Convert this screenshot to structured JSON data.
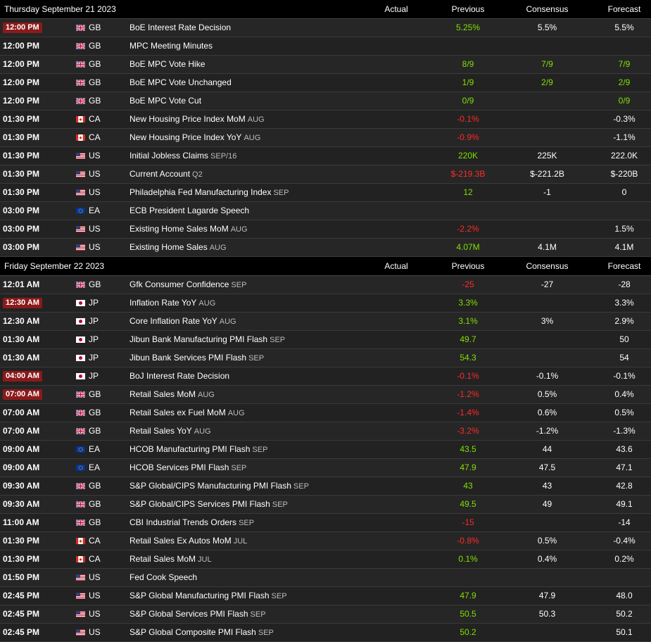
{
  "columns": {
    "actual": "Actual",
    "previous": "Previous",
    "consensus": "Consensus",
    "forecast": "Forecast"
  },
  "colors": {
    "positive": "#7fe000",
    "negative": "#ff2a2a",
    "badge": "#8b1a1a"
  },
  "days": [
    {
      "date": "Thursday September 21 2023",
      "events": [
        {
          "time": "12:00 PM",
          "badge": true,
          "country": "GB",
          "event": "BoE Interest Rate Decision",
          "ref": "",
          "actual": "",
          "previous": "5.25%",
          "previous_color": "pos",
          "consensus": "5.5%",
          "consensus_color": "neu",
          "forecast": "5.5%",
          "forecast_color": "neu"
        },
        {
          "time": "12:00 PM",
          "badge": false,
          "country": "GB",
          "event": "MPC Meeting Minutes",
          "ref": "",
          "actual": "",
          "previous": "",
          "previous_color": "neu",
          "consensus": "",
          "consensus_color": "neu",
          "forecast": "",
          "forecast_color": "neu"
        },
        {
          "time": "12:00 PM",
          "badge": false,
          "country": "GB",
          "event": "BoE MPC Vote Hike",
          "ref": "",
          "actual": "",
          "previous": "8/9",
          "previous_color": "pos",
          "consensus": "7/9",
          "consensus_color": "pos",
          "forecast": "7/9",
          "forecast_color": "pos"
        },
        {
          "time": "12:00 PM",
          "badge": false,
          "country": "GB",
          "event": "BoE MPC Vote Unchanged",
          "ref": "",
          "actual": "",
          "previous": "1/9",
          "previous_color": "pos",
          "consensus": "2/9",
          "consensus_color": "pos",
          "forecast": "2/9",
          "forecast_color": "pos"
        },
        {
          "time": "12:00 PM",
          "badge": false,
          "country": "GB",
          "event": "BoE MPC Vote Cut",
          "ref": "",
          "actual": "",
          "previous": "0/9",
          "previous_color": "pos",
          "consensus": "",
          "consensus_color": "neu",
          "forecast": "0/9",
          "forecast_color": "pos"
        },
        {
          "time": "01:30 PM",
          "badge": false,
          "country": "CA",
          "event": "New Housing Price Index MoM",
          "ref": "AUG",
          "actual": "",
          "previous": "-0.1%",
          "previous_color": "neg",
          "consensus": "",
          "consensus_color": "neu",
          "forecast": "-0.3%",
          "forecast_color": "neu"
        },
        {
          "time": "01:30 PM",
          "badge": false,
          "country": "CA",
          "event": "New Housing Price Index YoY",
          "ref": "AUG",
          "actual": "",
          "previous": "-0.9%",
          "previous_color": "neg",
          "consensus": "",
          "consensus_color": "neu",
          "forecast": "-1.1%",
          "forecast_color": "neu"
        },
        {
          "time": "01:30 PM",
          "badge": false,
          "country": "US",
          "event": "Initial Jobless Claims",
          "ref": "SEP/16",
          "actual": "",
          "previous": "220K",
          "previous_color": "pos",
          "consensus": "225K",
          "consensus_color": "neu",
          "forecast": "222.0K",
          "forecast_color": "neu"
        },
        {
          "time": "01:30 PM",
          "badge": false,
          "country": "US",
          "event": "Current Account",
          "ref": "Q2",
          "actual": "",
          "previous": "$-219.3B",
          "previous_color": "neg",
          "consensus": "$-221.2B",
          "consensus_color": "neu",
          "forecast": "$-220B",
          "forecast_color": "neu"
        },
        {
          "time": "01:30 PM",
          "badge": false,
          "country": "US",
          "event": "Philadelphia Fed Manufacturing Index",
          "ref": "SEP",
          "actual": "",
          "previous": "12",
          "previous_color": "pos",
          "consensus": "-1",
          "consensus_color": "neu",
          "forecast": "0",
          "forecast_color": "neu"
        },
        {
          "time": "03:00 PM",
          "badge": false,
          "country": "EA",
          "event": "ECB President Lagarde Speech",
          "ref": "",
          "actual": "",
          "previous": "",
          "previous_color": "neu",
          "consensus": "",
          "consensus_color": "neu",
          "forecast": "",
          "forecast_color": "neu"
        },
        {
          "time": "03:00 PM",
          "badge": false,
          "country": "US",
          "event": "Existing Home Sales MoM",
          "ref": "AUG",
          "actual": "",
          "previous": "-2.2%",
          "previous_color": "neg",
          "consensus": "",
          "consensus_color": "neu",
          "forecast": "1.5%",
          "forecast_color": "neu"
        },
        {
          "time": "03:00 PM",
          "badge": false,
          "country": "US",
          "event": "Existing Home Sales",
          "ref": "AUG",
          "actual": "",
          "previous": "4.07M",
          "previous_color": "pos",
          "consensus": "4.1M",
          "consensus_color": "neu",
          "forecast": "4.1M",
          "forecast_color": "neu"
        }
      ]
    },
    {
      "date": "Friday September 22 2023",
      "events": [
        {
          "time": "12:01 AM",
          "badge": false,
          "country": "GB",
          "event": "Gfk Consumer Confidence",
          "ref": "SEP",
          "actual": "",
          "previous": "-25",
          "previous_color": "neg",
          "consensus": "-27",
          "consensus_color": "neu",
          "forecast": "-28",
          "forecast_color": "neu"
        },
        {
          "time": "12:30 AM",
          "badge": true,
          "country": "JP",
          "event": "Inflation Rate YoY",
          "ref": "AUG",
          "actual": "",
          "previous": "3.3%",
          "previous_color": "pos",
          "consensus": "",
          "consensus_color": "neu",
          "forecast": "3.3%",
          "forecast_color": "neu"
        },
        {
          "time": "12:30 AM",
          "badge": false,
          "country": "JP",
          "event": "Core Inflation Rate YoY",
          "ref": "AUG",
          "actual": "",
          "previous": "3.1%",
          "previous_color": "pos",
          "consensus": "3%",
          "consensus_color": "neu",
          "forecast": "2.9%",
          "forecast_color": "neu"
        },
        {
          "time": "01:30 AM",
          "badge": false,
          "country": "JP",
          "event": "Jibun Bank Manufacturing PMI Flash",
          "ref": "SEP",
          "actual": "",
          "previous": "49.7",
          "previous_color": "pos",
          "consensus": "",
          "consensus_color": "neu",
          "forecast": "50",
          "forecast_color": "neu"
        },
        {
          "time": "01:30 AM",
          "badge": false,
          "country": "JP",
          "event": "Jibun Bank Services PMI Flash",
          "ref": "SEP",
          "actual": "",
          "previous": "54.3",
          "previous_color": "pos",
          "consensus": "",
          "consensus_color": "neu",
          "forecast": "54",
          "forecast_color": "neu"
        },
        {
          "time": "04:00 AM",
          "badge": true,
          "country": "JP",
          "event": "BoJ Interest Rate Decision",
          "ref": "",
          "actual": "",
          "previous": "-0.1%",
          "previous_color": "neg",
          "consensus": "-0.1%",
          "consensus_color": "neu",
          "forecast": "-0.1%",
          "forecast_color": "neu"
        },
        {
          "time": "07:00 AM",
          "badge": true,
          "country": "GB",
          "event": "Retail Sales MoM",
          "ref": "AUG",
          "actual": "",
          "previous": "-1.2%",
          "previous_color": "neg",
          "consensus": "0.5%",
          "consensus_color": "neu",
          "forecast": "0.4%",
          "forecast_color": "neu"
        },
        {
          "time": "07:00 AM",
          "badge": false,
          "country": "GB",
          "event": "Retail Sales ex Fuel MoM",
          "ref": "AUG",
          "actual": "",
          "previous": "-1.4%",
          "previous_color": "neg",
          "consensus": "0.6%",
          "consensus_color": "neu",
          "forecast": "0.5%",
          "forecast_color": "neu"
        },
        {
          "time": "07:00 AM",
          "badge": false,
          "country": "GB",
          "event": "Retail Sales YoY",
          "ref": "AUG",
          "actual": "",
          "previous": "-3.2%",
          "previous_color": "neg",
          "consensus": "-1.2%",
          "consensus_color": "neu",
          "forecast": "-1.3%",
          "forecast_color": "neu"
        },
        {
          "time": "09:00 AM",
          "badge": false,
          "country": "EA",
          "event": "HCOB Manufacturing PMI Flash",
          "ref": "SEP",
          "actual": "",
          "previous": "43.5",
          "previous_color": "pos",
          "consensus": "44",
          "consensus_color": "neu",
          "forecast": "43.6",
          "forecast_color": "neu"
        },
        {
          "time": "09:00 AM",
          "badge": false,
          "country": "EA",
          "event": "HCOB Services PMI Flash",
          "ref": "SEP",
          "actual": "",
          "previous": "47.9",
          "previous_color": "pos",
          "consensus": "47.5",
          "consensus_color": "neu",
          "forecast": "47.1",
          "forecast_color": "neu"
        },
        {
          "time": "09:30 AM",
          "badge": false,
          "country": "GB",
          "event": "S&P Global/CIPS Manufacturing PMI Flash",
          "ref": "SEP",
          "actual": "",
          "previous": "43",
          "previous_color": "pos",
          "consensus": "43",
          "consensus_color": "neu",
          "forecast": "42.8",
          "forecast_color": "neu"
        },
        {
          "time": "09:30 AM",
          "badge": false,
          "country": "GB",
          "event": "S&P Global/CIPS Services PMI Flash",
          "ref": "SEP",
          "actual": "",
          "previous": "49.5",
          "previous_color": "pos",
          "consensus": "49",
          "consensus_color": "neu",
          "forecast": "49.1",
          "forecast_color": "neu"
        },
        {
          "time": "11:00 AM",
          "badge": false,
          "country": "GB",
          "event": "CBI Industrial Trends Orders",
          "ref": "SEP",
          "actual": "",
          "previous": "-15",
          "previous_color": "neg",
          "consensus": "",
          "consensus_color": "neu",
          "forecast": "-14",
          "forecast_color": "neu"
        },
        {
          "time": "01:30 PM",
          "badge": false,
          "country": "CA",
          "event": "Retail Sales Ex Autos MoM",
          "ref": "JUL",
          "actual": "",
          "previous": "-0.8%",
          "previous_color": "neg",
          "consensus": "0.5%",
          "consensus_color": "neu",
          "forecast": "-0.4%",
          "forecast_color": "neu"
        },
        {
          "time": "01:30 PM",
          "badge": false,
          "country": "CA",
          "event": "Retail Sales MoM",
          "ref": "JUL",
          "actual": "",
          "previous": "0.1%",
          "previous_color": "pos",
          "consensus": "0.4%",
          "consensus_color": "neu",
          "forecast": "0.2%",
          "forecast_color": "neu"
        },
        {
          "time": "01:50 PM",
          "badge": false,
          "country": "US",
          "event": "Fed Cook Speech",
          "ref": "",
          "actual": "",
          "previous": "",
          "previous_color": "neu",
          "consensus": "",
          "consensus_color": "neu",
          "forecast": "",
          "forecast_color": "neu"
        },
        {
          "time": "02:45 PM",
          "badge": false,
          "country": "US",
          "event": "S&P Global Manufacturing PMI Flash",
          "ref": "SEP",
          "actual": "",
          "previous": "47.9",
          "previous_color": "pos",
          "consensus": "47.9",
          "consensus_color": "neu",
          "forecast": "48.0",
          "forecast_color": "neu"
        },
        {
          "time": "02:45 PM",
          "badge": false,
          "country": "US",
          "event": "S&P Global Services PMI Flash",
          "ref": "SEP",
          "actual": "",
          "previous": "50.5",
          "previous_color": "pos",
          "consensus": "50.3",
          "consensus_color": "neu",
          "forecast": "50.2",
          "forecast_color": "neu"
        },
        {
          "time": "02:45 PM",
          "badge": false,
          "country": "US",
          "event": "S&P Global Composite PMI Flash",
          "ref": "SEP",
          "actual": "",
          "previous": "50.2",
          "previous_color": "pos",
          "consensus": "",
          "consensus_color": "neu",
          "forecast": "50.1",
          "forecast_color": "neu"
        }
      ]
    }
  ]
}
